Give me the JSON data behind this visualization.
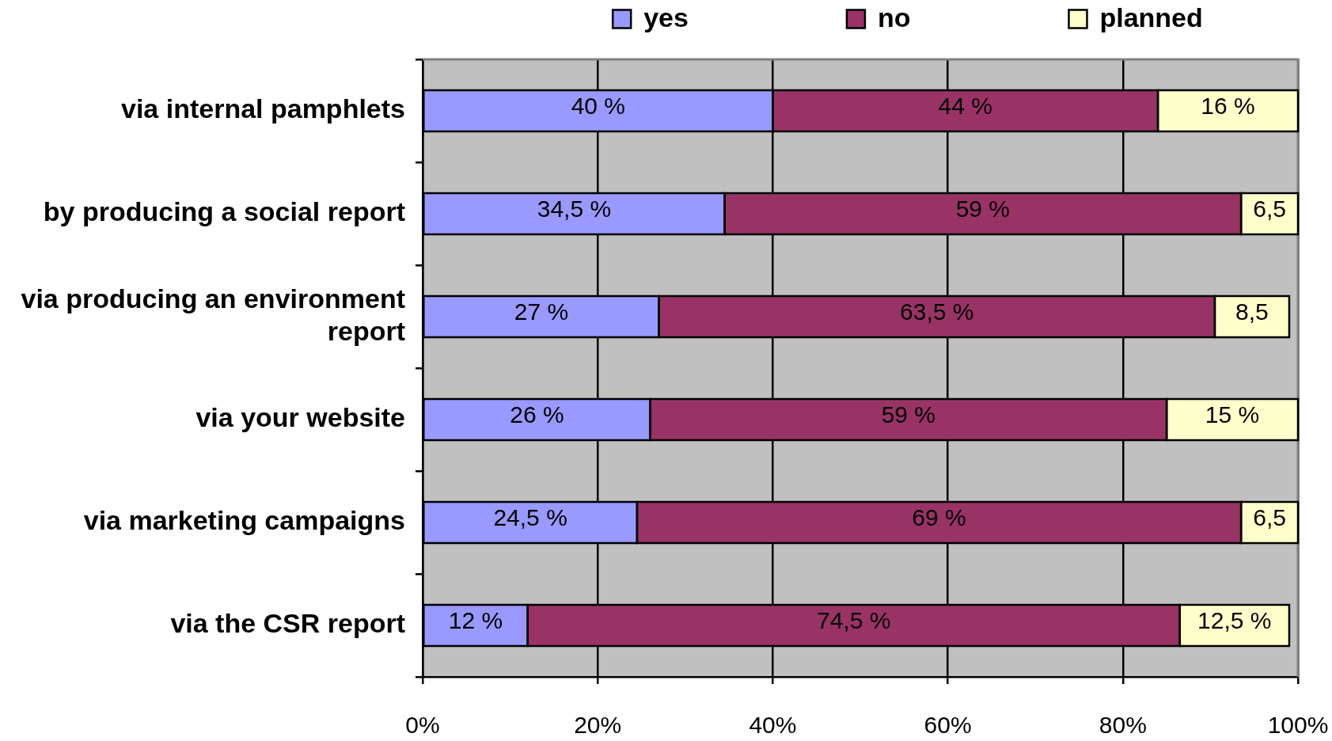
{
  "chart_data": {
    "type": "bar",
    "orientation": "horizontal",
    "stacked": true,
    "categories": [
      "via internal pamphlets",
      "by producing a social report",
      "via producing an environment report",
      "via your website",
      "via marketing campaigns",
      "via the CSR report"
    ],
    "series": [
      {
        "name": "yes",
        "color": "#9999ff",
        "values": [
          40,
          34.5,
          27,
          26,
          24.5,
          12
        ],
        "value_labels": [
          "40 %",
          "34,5 %",
          "27 %",
          "26 %",
          "24,5 %",
          "12 %"
        ]
      },
      {
        "name": "no",
        "color": "#993366",
        "values": [
          44,
          59,
          63.5,
          59,
          69,
          74.5
        ],
        "value_labels": [
          "44 %",
          "59 %",
          "63,5 %",
          "59 %",
          "69 %",
          "74,5 %"
        ]
      },
      {
        "name": "planned",
        "color": "#ffffcc",
        "values": [
          16,
          6.5,
          8.5,
          15,
          6.5,
          12.5
        ],
        "value_labels": [
          "16 %",
          "6,5",
          "8,5",
          "15 %",
          "6,5",
          "12,5 %"
        ]
      }
    ],
    "xlim": [
      0,
      100
    ],
    "xticks": [
      {
        "value": 0,
        "label": "0%"
      },
      {
        "value": 20,
        "label": "20%"
      },
      {
        "value": 40,
        "label": "40%"
      },
      {
        "value": 60,
        "label": "60%"
      },
      {
        "value": 80,
        "label": "80%"
      },
      {
        "value": 100,
        "label": "100%"
      }
    ],
    "grid": "x",
    "legend": "top"
  }
}
